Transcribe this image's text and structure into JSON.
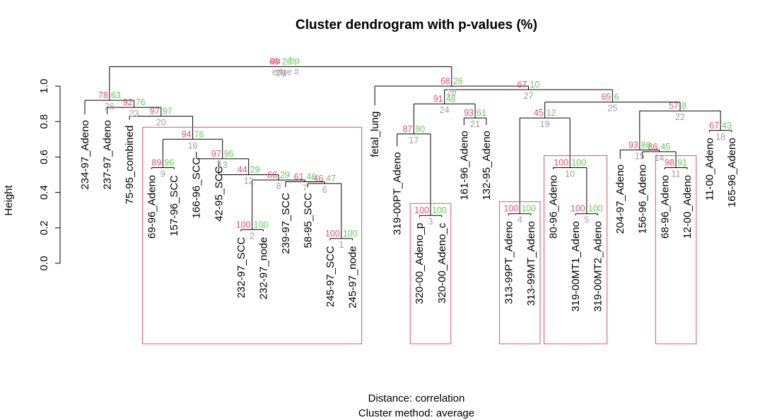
{
  "chart_data": {
    "type": "dendrogram",
    "title": "Cluster dendrogram with p-values (%)",
    "ylabel": "Height",
    "ylim": [
      0,
      1.1
    ],
    "yticks": [
      "0.0",
      "0.2",
      "0.4",
      "0.6",
      "0.8",
      "1.0"
    ],
    "legend": {
      "au": "au",
      "bp": "bp",
      "edge": "edge #"
    },
    "subtitle": [
      "Distance:  correlation",
      "Cluster method: average"
    ],
    "colors": {
      "au": "#DF536B",
      "bp": "#61D04F",
      "edge": "#9E9E9E",
      "box": "#DF536B",
      "tree": "#000000"
    },
    "leaves": [
      "234-97_Adeno",
      "237-97_Adeno",
      "75-95_combined",
      "69-96_Adeno",
      "157-96_SCC",
      "166-96_SCC",
      "42-95_SCC",
      "232-97_SCC",
      "232-97_node",
      "239-97_SCC",
      "58-95_SCC",
      "245-97_SCC",
      "245-97_node",
      "fetal_lung",
      "319-00PT_Adeno",
      "320-00_Adeno_p",
      "320-00_Adeno_c",
      "161-96_Adeno",
      "132-95_Adeno",
      "313-99PT_Adeno",
      "313-99MT_Adeno",
      "80-96_Adeno",
      "319-00MT1_Adeno",
      "319-00MT2_Adeno",
      "204-97_Adeno",
      "156-96_Adeno",
      "68-96_Adeno",
      "12-00_Adeno",
      "11-00_Adeno",
      "165-96_Adeno"
    ],
    "leaf_height": {
      "234-97_Adeno": 0.84,
      "237-97_Adeno": 0.84,
      "75-95_combined": 0.81,
      "69-96_Adeno": 0.53,
      "157-96_SCC": 0.53,
      "166-96_SCC": 0.63,
      "42-95_SCC": 0.58,
      "232-97_SCC": 0.18,
      "232-97_node": 0.18,
      "239-97_SCC": 0.43,
      "58-95_SCC": 0.43,
      "245-97_SCC": 0.13,
      "245-97_node": 0.13,
      "fetal_lung": 0.89,
      "319-00PT_Adeno": 0.66,
      "320-00_Adeno_p": 0.26,
      "320-00_Adeno_c": 0.26,
      "161-96_Adeno": 0.78,
      "132-95_Adeno": 0.78,
      "313-99PT_Adeno": 0.27,
      "313-99MT_Adeno": 0.27,
      "80-96_Adeno": 0.53,
      "319-00MT1_Adeno": 0.27,
      "319-00MT2_Adeno": 0.27,
      "204-97_Adeno": 0.59,
      "156-96_Adeno": 0.59,
      "68-96_Adeno": 0.53,
      "12-00_Adeno": 0.53,
      "11-00_Adeno": 0.74,
      "165-96_Adeno": 0.74
    },
    "merges": [
      {
        "edge": 1,
        "a": "245-97_SCC",
        "b": "245-97_node",
        "h": 0.14,
        "au": 100,
        "bp": 100
      },
      {
        "edge": 2,
        "a": "232-97_SCC",
        "b": "232-97_node",
        "h": 0.19,
        "au": 100,
        "bp": 100
      },
      {
        "edge": 3,
        "a": "320-00_Adeno_p",
        "b": "320-00_Adeno_c",
        "h": 0.27,
        "au": 100,
        "bp": 100
      },
      {
        "edge": 4,
        "a": "313-99PT_Adeno",
        "b": "313-99MT_Adeno",
        "h": 0.28,
        "au": 100,
        "bp": 100
      },
      {
        "edge": 5,
        "a": "319-00MT1_Adeno",
        "b": "319-00MT2_Adeno",
        "h": 0.28,
        "au": 100,
        "bp": 100
      },
      {
        "edge": 6,
        "a": "58-95_SCC",
        "b": 1,
        "h": 0.45,
        "au": 46,
        "bp": 47
      },
      {
        "edge": 7,
        "a": "239-97_SCC",
        "b": 6,
        "h": 0.46,
        "au": 61,
        "bp": 46
      },
      {
        "edge": 8,
        "a": 2,
        "b": 7,
        "h": 0.47,
        "au": 66,
        "bp": 29
      },
      {
        "edge": 9,
        "a": "69-96_Adeno",
        "b": "157-96_SCC",
        "h": 0.54,
        "au": 89,
        "bp": 96
      },
      {
        "edge": 10,
        "a": "80-96_Adeno",
        "b": 5,
        "h": 0.54,
        "au": 100,
        "bp": 100
      },
      {
        "edge": 11,
        "a": "68-96_Adeno",
        "b": "12-00_Adeno",
        "h": 0.54,
        "au": 98,
        "bp": 91
      },
      {
        "edge": 12,
        "a": "42-95_SCC",
        "b": 8,
        "h": 0.5,
        "au": 44,
        "bp": 29
      },
      {
        "edge": 13,
        "a": "166-96_SCC",
        "b": 12,
        "h": 0.59,
        "au": 97,
        "bp": 96
      },
      {
        "edge": 14,
        "a": "156-96_Adeno",
        "b": 11,
        "h": 0.63,
        "au": 86,
        "bp": 45
      },
      {
        "edge": 15,
        "a": "204-97_Adeno",
        "b": 14,
        "h": 0.64,
        "au": 93,
        "bp": 86
      },
      {
        "edge": 16,
        "a": 9,
        "b": 13,
        "h": 0.7,
        "au": 94,
        "bp": 76
      },
      {
        "edge": 17,
        "a": "319-00PT_Adeno",
        "b": 3,
        "h": 0.73,
        "au": 87,
        "bp": 90
      },
      {
        "edge": 18,
        "a": "11-00_Adeno",
        "b": "165-96_Adeno",
        "h": 0.75,
        "au": 67,
        "bp": 43
      },
      {
        "edge": 19,
        "a": 4,
        "b": 10,
        "h": 0.82,
        "au": 45,
        "bp": 12
      },
      {
        "edge": 20,
        "a": "75-95_combined",
        "b": 16,
        "h": 0.83,
        "au": 97,
        "bp": 97
      },
      {
        "edge": 21,
        "a": "161-96_Adeno",
        "b": "132-95_Adeno",
        "h": 0.82,
        "au": 93,
        "bp": 61
      },
      {
        "edge": 22,
        "a": 15,
        "b": 18,
        "h": 0.86,
        "au": 57,
        "bp": 8
      },
      {
        "edge": 23,
        "a": "237-97_Adeno",
        "b": 20,
        "h": 0.88,
        "au": 92,
        "bp": 76
      },
      {
        "edge": 24,
        "a": 17,
        "b": 21,
        "h": 0.9,
        "au": 91,
        "bp": 48
      },
      {
        "edge": 25,
        "a": 19,
        "b": 22,
        "h": 0.91,
        "au": 65,
        "bp": 6
      },
      {
        "edge": 26,
        "a": "234-97_Adeno",
        "b": 23,
        "h": 0.92,
        "au": 78,
        "bp": 63
      },
      {
        "edge": 27,
        "a": 24,
        "b": 25,
        "h": 0.98,
        "au": 67,
        "bp": 10
      },
      {
        "edge": 28,
        "a": "fetal_lung",
        "b": 27,
        "h": 1.0,
        "au": 68,
        "bp": 26
      },
      {
        "edge": 29,
        "a": 26,
        "b": 28,
        "h": 1.11,
        "au": 63,
        "bp": 26
      }
    ],
    "boxes": [
      {
        "from": "69-96_Adeno",
        "to": "245-97_node"
      },
      {
        "from": "320-00_Adeno_p",
        "to": "320-00_Adeno_c"
      },
      {
        "from": "313-99PT_Adeno",
        "to": "313-99MT_Adeno"
      },
      {
        "from": "80-96_Adeno",
        "to": "319-00MT2_Adeno"
      },
      {
        "from": "68-96_Adeno",
        "to": "12-00_Adeno"
      }
    ]
  }
}
